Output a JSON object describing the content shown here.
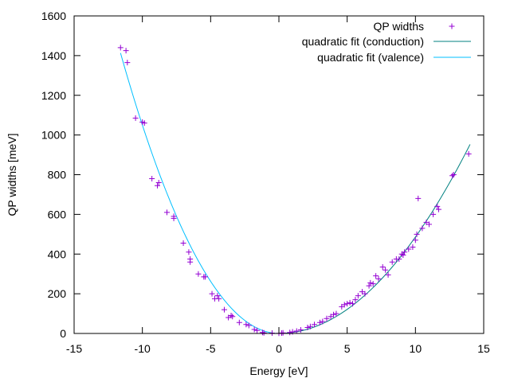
{
  "chart_data": {
    "type": "scatter",
    "title": "",
    "xlabel": "Energy  [eV]",
    "ylabel": "QP widths [meV]",
    "xlim": [
      -15,
      15
    ],
    "ylim": [
      0,
      1600
    ],
    "xticks": [
      -15,
      -10,
      -5,
      0,
      5,
      10,
      15
    ],
    "yticks": [
      0,
      200,
      400,
      600,
      800,
      1000,
      1200,
      1400,
      1600
    ],
    "grid": false,
    "legend_position": "top-right",
    "series": [
      {
        "name": "QP widths",
        "kind": "points",
        "marker": "plus",
        "color": "#9400d3",
        "points": [
          [
            -11.6,
            1440
          ],
          [
            -11.2,
            1425
          ],
          [
            -11.1,
            1365
          ],
          [
            -10.5,
            1085
          ],
          [
            -10.0,
            1065
          ],
          [
            -9.85,
            1060
          ],
          [
            -9.3,
            780
          ],
          [
            -8.9,
            745
          ],
          [
            -8.8,
            760
          ],
          [
            -8.2,
            610
          ],
          [
            -7.7,
            590
          ],
          [
            -7.7,
            580
          ],
          [
            -7.0,
            455
          ],
          [
            -6.6,
            410
          ],
          [
            -6.5,
            375
          ],
          [
            -6.5,
            360
          ],
          [
            -5.9,
            300
          ],
          [
            -5.5,
            285
          ],
          [
            -5.4,
            285
          ],
          [
            -4.9,
            200
          ],
          [
            -4.7,
            175
          ],
          [
            -4.5,
            190
          ],
          [
            -4.4,
            175
          ],
          [
            -4.0,
            120
          ],
          [
            -3.7,
            80
          ],
          [
            -3.5,
            90
          ],
          [
            -3.4,
            85
          ],
          [
            -2.9,
            55
          ],
          [
            -2.4,
            45
          ],
          [
            -2.2,
            40
          ],
          [
            -1.8,
            20
          ],
          [
            -1.6,
            15
          ],
          [
            -1.2,
            5
          ],
          [
            -1.1,
            3
          ],
          [
            -0.5,
            2
          ],
          [
            0.0,
            1
          ],
          [
            0.2,
            2
          ],
          [
            0.3,
            3
          ],
          [
            0.8,
            5
          ],
          [
            1.0,
            8
          ],
          [
            1.3,
            12
          ],
          [
            1.6,
            18
          ],
          [
            2.1,
            30
          ],
          [
            2.3,
            35
          ],
          [
            2.6,
            45
          ],
          [
            3.0,
            55
          ],
          [
            3.2,
            60
          ],
          [
            3.5,
            75
          ],
          [
            3.8,
            85
          ],
          [
            4.0,
            95
          ],
          [
            4.2,
            100
          ],
          [
            4.6,
            135
          ],
          [
            4.8,
            145
          ],
          [
            5.0,
            150
          ],
          [
            5.2,
            155
          ],
          [
            5.4,
            150
          ],
          [
            5.6,
            170
          ],
          [
            5.8,
            190
          ],
          [
            6.1,
            210
          ],
          [
            6.3,
            200
          ],
          [
            6.6,
            240
          ],
          [
            6.7,
            255
          ],
          [
            6.9,
            250
          ],
          [
            7.1,
            290
          ],
          [
            7.3,
            275
          ],
          [
            7.6,
            335
          ],
          [
            7.8,
            320
          ],
          [
            8.0,
            295
          ],
          [
            8.3,
            360
          ],
          [
            8.6,
            375
          ],
          [
            8.8,
            375
          ],
          [
            9.0,
            400
          ],
          [
            9.1,
            395
          ],
          [
            9.2,
            410
          ],
          [
            9.5,
            425
          ],
          [
            9.8,
            435
          ],
          [
            10.0,
            470
          ],
          [
            10.1,
            500
          ],
          [
            10.2,
            680
          ],
          [
            10.5,
            530
          ],
          [
            10.8,
            560
          ],
          [
            11.0,
            550
          ],
          [
            11.3,
            600
          ],
          [
            11.6,
            640
          ],
          [
            11.7,
            625
          ],
          [
            12.7,
            795
          ],
          [
            12.8,
            800
          ],
          [
            13.9,
            905
          ]
        ]
      },
      {
        "name": "quadratic fit (conduction)",
        "kind": "line",
        "color": "#008080",
        "x_range": [
          0,
          14
        ],
        "formula": "y = 4.86 * x^2",
        "coefficient": 4.86
      },
      {
        "name": "quadratic fit (valence)",
        "kind": "line",
        "color": "#00bfff",
        "x_range": [
          -11.6,
          0
        ],
        "formula": "y = 10.5 * x^2",
        "coefficient": 10.5
      }
    ]
  }
}
